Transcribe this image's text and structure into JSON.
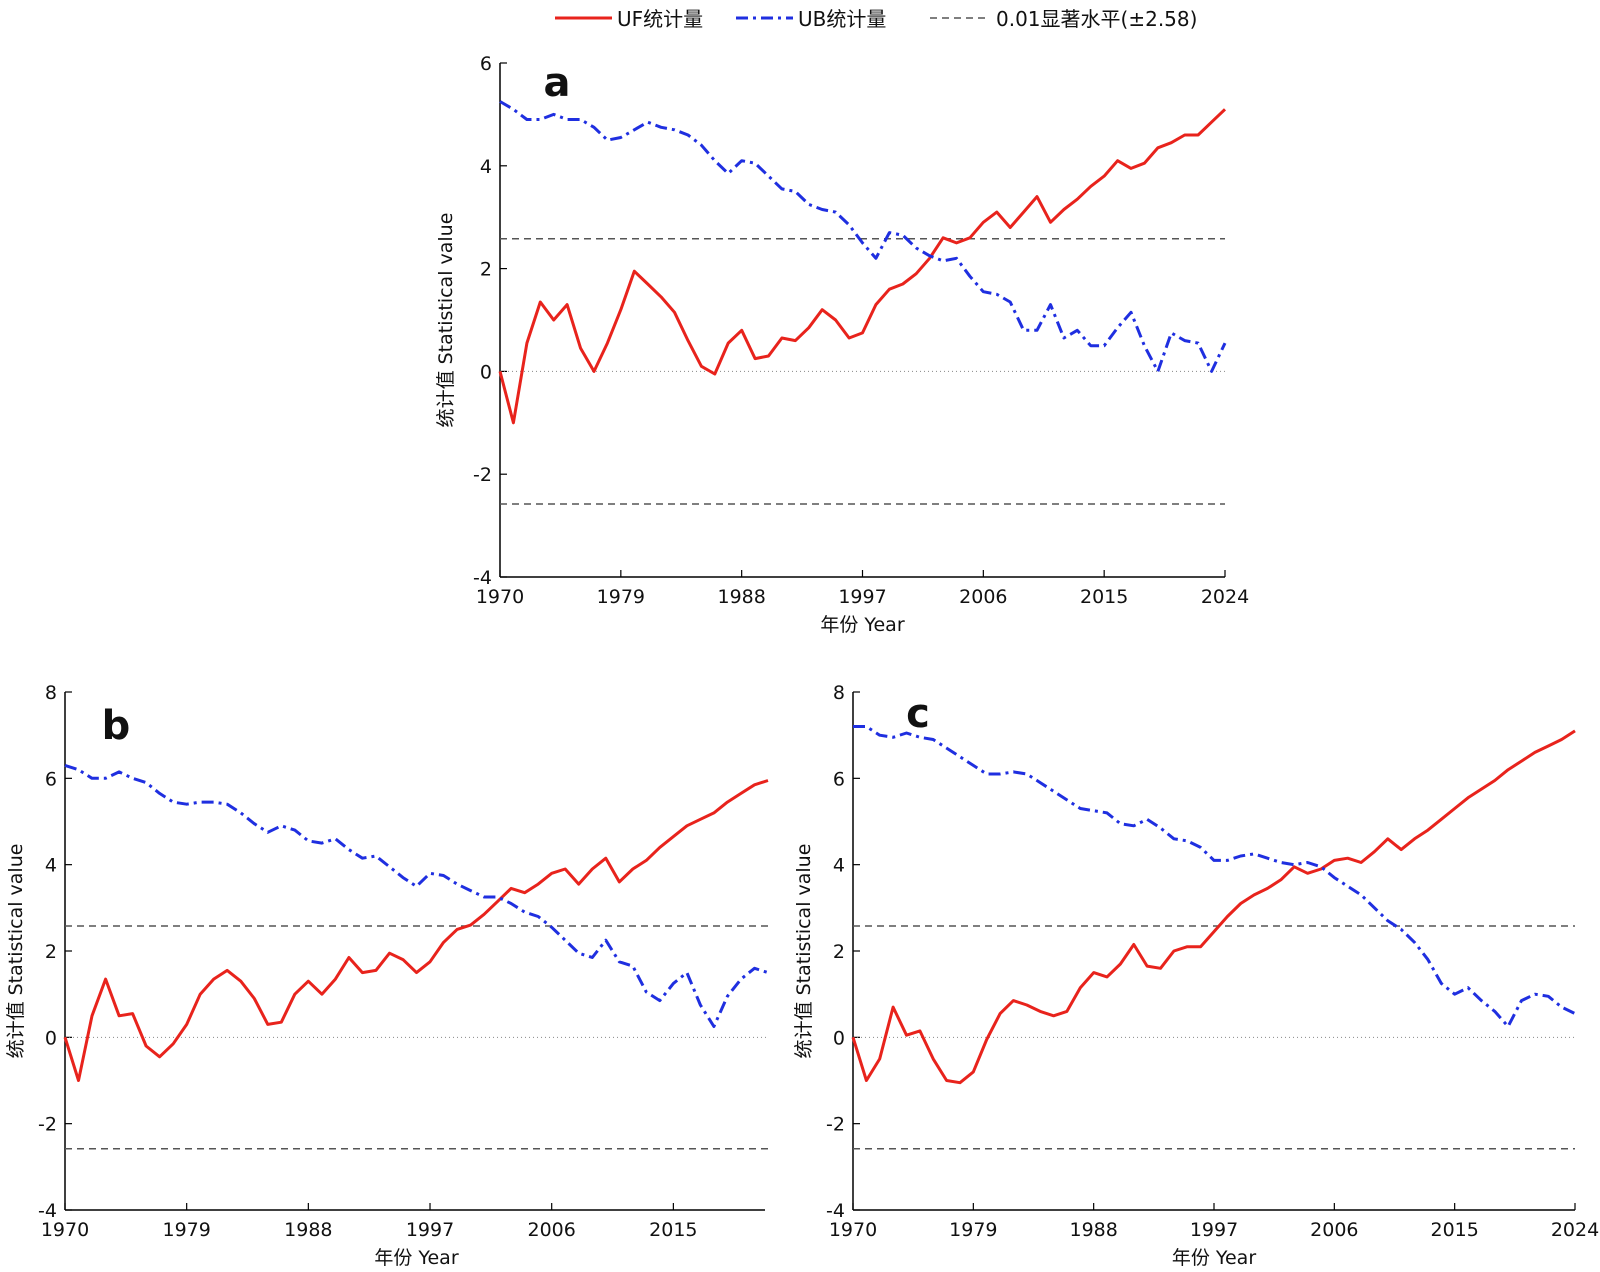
{
  "legend": {
    "uf_label": "UF统计量",
    "ub_label": "UB统计量",
    "sig_label": "0.01显著水平(±2.58)"
  },
  "colors": {
    "uf": "#e8231c",
    "ub": "#1f2fe0",
    "sig": "#555555",
    "zero": "#888888"
  },
  "chart_data": [
    {
      "type": "line",
      "panel": "a",
      "xlabel": "年份 Year",
      "ylabel": "统计值 Statistical value",
      "xlim": [
        1970,
        2024
      ],
      "ylim": [
        -4,
        6
      ],
      "xticks": [
        1970,
        1979,
        1988,
        1997,
        2006,
        2015,
        2024
      ],
      "yticks": [
        -4,
        -2,
        0,
        2,
        4,
        6
      ],
      "significance": 2.58,
      "series": [
        {
          "name": "UF统计量",
          "x": [
            1970,
            1971,
            1972,
            1973,
            1974,
            1975,
            1976,
            1977,
            1978,
            1979,
            1980,
            1981,
            1982,
            1983,
            1984,
            1985,
            1986,
            1987,
            1988,
            1989,
            1990,
            1991,
            1992,
            1993,
            1994,
            1995,
            1996,
            1997,
            1998,
            1999,
            2000,
            2001,
            2002,
            2003,
            2004,
            2005,
            2006,
            2007,
            2008,
            2009,
            2010,
            2011,
            2012,
            2013,
            2014,
            2015,
            2016,
            2017,
            2018,
            2019,
            2020,
            2021,
            2022,
            2023,
            2024
          ],
          "values": [
            0,
            -1.0,
            0.55,
            1.35,
            1.0,
            1.3,
            0.45,
            0.0,
            0.55,
            1.2,
            1.95,
            1.7,
            1.45,
            1.15,
            0.6,
            0.1,
            -0.05,
            0.55,
            0.8,
            0.25,
            0.3,
            0.65,
            0.6,
            0.85,
            1.2,
            1.0,
            0.65,
            0.75,
            1.3,
            1.6,
            1.7,
            1.9,
            2.2,
            2.6,
            2.5,
            2.6,
            2.9,
            3.1,
            2.8,
            3.1,
            3.4,
            2.9,
            3.15,
            3.35,
            3.6,
            3.8,
            4.1,
            3.95,
            4.05,
            4.35,
            4.45,
            4.6,
            4.6,
            4.85,
            5.1
          ]
        },
        {
          "name": "UB统计量",
          "x": [
            1970,
            1971,
            1972,
            1973,
            1974,
            1975,
            1976,
            1977,
            1978,
            1979,
            1980,
            1981,
            1982,
            1983,
            1984,
            1985,
            1986,
            1987,
            1988,
            1989,
            1990,
            1991,
            1992,
            1993,
            1994,
            1995,
            1996,
            1997,
            1998,
            1999,
            2000,
            2001,
            2002,
            2003,
            2004,
            2005,
            2006,
            2007,
            2008,
            2009,
            2010,
            2011,
            2012,
            2013,
            2014,
            2015,
            2016,
            2017,
            2018,
            2019,
            2020,
            2021,
            2022,
            2023,
            2024
          ],
          "values": [
            5.25,
            5.1,
            4.9,
            4.9,
            5.0,
            4.9,
            4.9,
            4.75,
            4.5,
            4.55,
            4.7,
            4.85,
            4.75,
            4.7,
            4.6,
            4.4,
            4.1,
            3.85,
            4.1,
            4.05,
            3.8,
            3.55,
            3.5,
            3.25,
            3.15,
            3.1,
            2.85,
            2.5,
            2.2,
            2.7,
            2.65,
            2.4,
            2.25,
            2.15,
            2.2,
            1.85,
            1.55,
            1.5,
            1.35,
            0.8,
            0.8,
            1.3,
            0.65,
            0.8,
            0.5,
            0.5,
            0.85,
            1.15,
            0.5,
            0.0,
            0.75,
            0.6,
            0.55,
            0.0,
            0.55
          ]
        }
      ]
    },
    {
      "type": "line",
      "panel": "b",
      "xlabel": "年份 Year",
      "ylabel": "统计值 Statistical value",
      "xlim": [
        1970,
        2022
      ],
      "ylim": [
        -4,
        8
      ],
      "xticks": [
        1970,
        1979,
        1988,
        1997,
        2006,
        2015
      ],
      "yticks": [
        -4,
        -2,
        0,
        2,
        4,
        6,
        8
      ],
      "significance": 2.58,
      "series": [
        {
          "name": "UF统计量",
          "x": [
            1970,
            1971,
            1972,
            1973,
            1974,
            1975,
            1976,
            1977,
            1978,
            1979,
            1980,
            1981,
            1982,
            1983,
            1984,
            1985,
            1986,
            1987,
            1988,
            1989,
            1990,
            1991,
            1992,
            1993,
            1994,
            1995,
            1996,
            1997,
            1998,
            1999,
            2000,
            2001,
            2002,
            2003,
            2004,
            2005,
            2006,
            2007,
            2008,
            2009,
            2010,
            2011,
            2012,
            2013,
            2014,
            2015,
            2016,
            2017,
            2018,
            2019,
            2020,
            2021,
            2022
          ],
          "values": [
            0,
            -1.0,
            0.5,
            1.35,
            0.5,
            0.55,
            -0.2,
            -0.45,
            -0.15,
            0.3,
            1.0,
            1.35,
            1.55,
            1.3,
            0.9,
            0.3,
            0.35,
            1.0,
            1.3,
            1.0,
            1.35,
            1.85,
            1.5,
            1.55,
            1.95,
            1.8,
            1.5,
            1.75,
            2.2,
            2.5,
            2.6,
            2.85,
            3.15,
            3.45,
            3.35,
            3.55,
            3.8,
            3.9,
            3.55,
            3.9,
            4.15,
            3.6,
            3.9,
            4.1,
            4.4,
            4.65,
            4.9,
            5.05,
            5.2,
            5.45,
            5.65,
            5.85,
            5.95
          ]
        },
        {
          "name": "UB统计量",
          "x": [
            1970,
            1971,
            1972,
            1973,
            1974,
            1975,
            1976,
            1977,
            1978,
            1979,
            1980,
            1981,
            1982,
            1983,
            1984,
            1985,
            1986,
            1987,
            1988,
            1989,
            1990,
            1991,
            1992,
            1993,
            1994,
            1995,
            1996,
            1997,
            1998,
            1999,
            2000,
            2001,
            2002,
            2003,
            2004,
            2005,
            2006,
            2007,
            2008,
            2009,
            2010,
            2011,
            2012,
            2013,
            2014,
            2015,
            2016,
            2017,
            2018,
            2019,
            2020,
            2021,
            2022
          ],
          "values": [
            6.3,
            6.2,
            6.0,
            6.0,
            6.15,
            6.0,
            5.9,
            5.65,
            5.45,
            5.4,
            5.45,
            5.45,
            5.4,
            5.2,
            4.95,
            4.75,
            4.9,
            4.8,
            4.55,
            4.5,
            4.6,
            4.35,
            4.15,
            4.2,
            3.95,
            3.7,
            3.5,
            3.8,
            3.75,
            3.55,
            3.4,
            3.25,
            3.25,
            3.1,
            2.9,
            2.8,
            2.55,
            2.25,
            1.95,
            1.85,
            2.25,
            1.75,
            1.65,
            1.05,
            0.85,
            1.25,
            1.5,
            0.75,
            0.25,
            0.95,
            1.35,
            1.6,
            1.5
          ]
        }
      ]
    },
    {
      "type": "line",
      "panel": "c",
      "xlabel": "年份 Year",
      "ylabel": "统计值 Statistical value",
      "xlim": [
        1970,
        2024
      ],
      "ylim": [
        -4,
        8
      ],
      "xticks": [
        1970,
        1979,
        1988,
        1997,
        2006,
        2015,
        2024
      ],
      "yticks": [
        -4,
        -2,
        0,
        2,
        4,
        6,
        8
      ],
      "significance": 2.58,
      "series": [
        {
          "name": "UF统计量",
          "x": [
            1970,
            1971,
            1972,
            1973,
            1974,
            1975,
            1976,
            1977,
            1978,
            1979,
            1980,
            1981,
            1982,
            1983,
            1984,
            1985,
            1986,
            1987,
            1988,
            1989,
            1990,
            1991,
            1992,
            1993,
            1994,
            1995,
            1996,
            1997,
            1998,
            1999,
            2000,
            2001,
            2002,
            2003,
            2004,
            2005,
            2006,
            2007,
            2008,
            2009,
            2010,
            2011,
            2012,
            2013,
            2014,
            2015,
            2016,
            2017,
            2018,
            2019,
            2020,
            2021,
            2022,
            2023,
            2024
          ],
          "values": [
            0,
            -1.0,
            -0.5,
            0.7,
            0.05,
            0.15,
            -0.5,
            -1.0,
            -1.05,
            -0.8,
            -0.05,
            0.55,
            0.85,
            0.75,
            0.6,
            0.5,
            0.6,
            1.15,
            1.5,
            1.4,
            1.7,
            2.15,
            1.65,
            1.6,
            2.0,
            2.1,
            2.1,
            2.45,
            2.8,
            3.1,
            3.3,
            3.45,
            3.65,
            3.95,
            3.8,
            3.9,
            4.1,
            4.15,
            4.05,
            4.3,
            4.6,
            4.35,
            4.6,
            4.8,
            5.05,
            5.3,
            5.55,
            5.75,
            5.95,
            6.2,
            6.4,
            6.6,
            6.75,
            6.9,
            7.1
          ]
        },
        {
          "name": "UB统计量",
          "x": [
            1970,
            1971,
            1972,
            1973,
            1974,
            1975,
            1976,
            1977,
            1978,
            1979,
            1980,
            1981,
            1982,
            1983,
            1984,
            1985,
            1986,
            1987,
            1988,
            1989,
            1990,
            1991,
            1992,
            1993,
            1994,
            1995,
            1996,
            1997,
            1998,
            1999,
            2000,
            2001,
            2002,
            2003,
            2004,
            2005,
            2006,
            2007,
            2008,
            2009,
            2010,
            2011,
            2012,
            2013,
            2014,
            2015,
            2016,
            2017,
            2018,
            2019,
            2020,
            2021,
            2022,
            2023,
            2024
          ],
          "values": [
            7.2,
            7.2,
            7.0,
            6.95,
            7.05,
            6.95,
            6.9,
            6.7,
            6.5,
            6.3,
            6.1,
            6.1,
            6.15,
            6.1,
            5.9,
            5.7,
            5.5,
            5.3,
            5.25,
            5.2,
            4.95,
            4.9,
            5.05,
            4.85,
            4.6,
            4.55,
            4.4,
            4.1,
            4.1,
            4.2,
            4.25,
            4.15,
            4.05,
            4.0,
            4.05,
            3.95,
            3.7,
            3.5,
            3.3,
            3.0,
            2.7,
            2.5,
            2.2,
            1.8,
            1.25,
            1.0,
            1.15,
            0.85,
            0.6,
            0.25,
            0.85,
            1.0,
            0.95,
            0.7,
            0.55
          ]
        }
      ]
    }
  ]
}
